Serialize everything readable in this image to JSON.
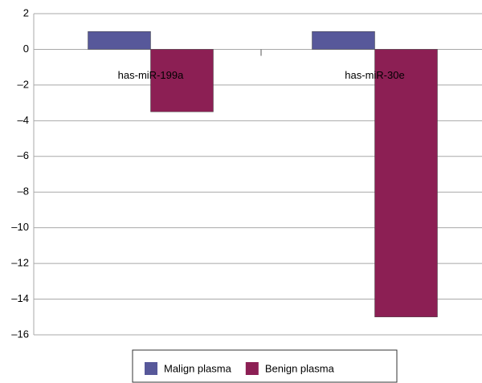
{
  "chart_data": {
    "type": "bar",
    "categories": [
      "has-miR-199a",
      "has-miR-30e"
    ],
    "series": [
      {
        "name": "Malign plasma",
        "color": "#57589a",
        "values": [
          1,
          1
        ]
      },
      {
        "name": "Benign plasma",
        "color": "#8c1f54",
        "values": [
          -3.5,
          -15
        ]
      }
    ],
    "ylim": [
      -16,
      2
    ],
    "yticks": [
      {
        "value": -16,
        "label": "–16"
      },
      {
        "value": -14,
        "label": "–14"
      },
      {
        "value": -12,
        "label": "–12"
      },
      {
        "value": -10,
        "label": "–10"
      },
      {
        "value": -8,
        "label": "–8"
      },
      {
        "value": -6,
        "label": "–6"
      },
      {
        "value": -4,
        "label": "–4"
      },
      {
        "value": -2,
        "label": "–2"
      },
      0,
      2
    ],
    "grid": true,
    "legend": "bottom"
  }
}
